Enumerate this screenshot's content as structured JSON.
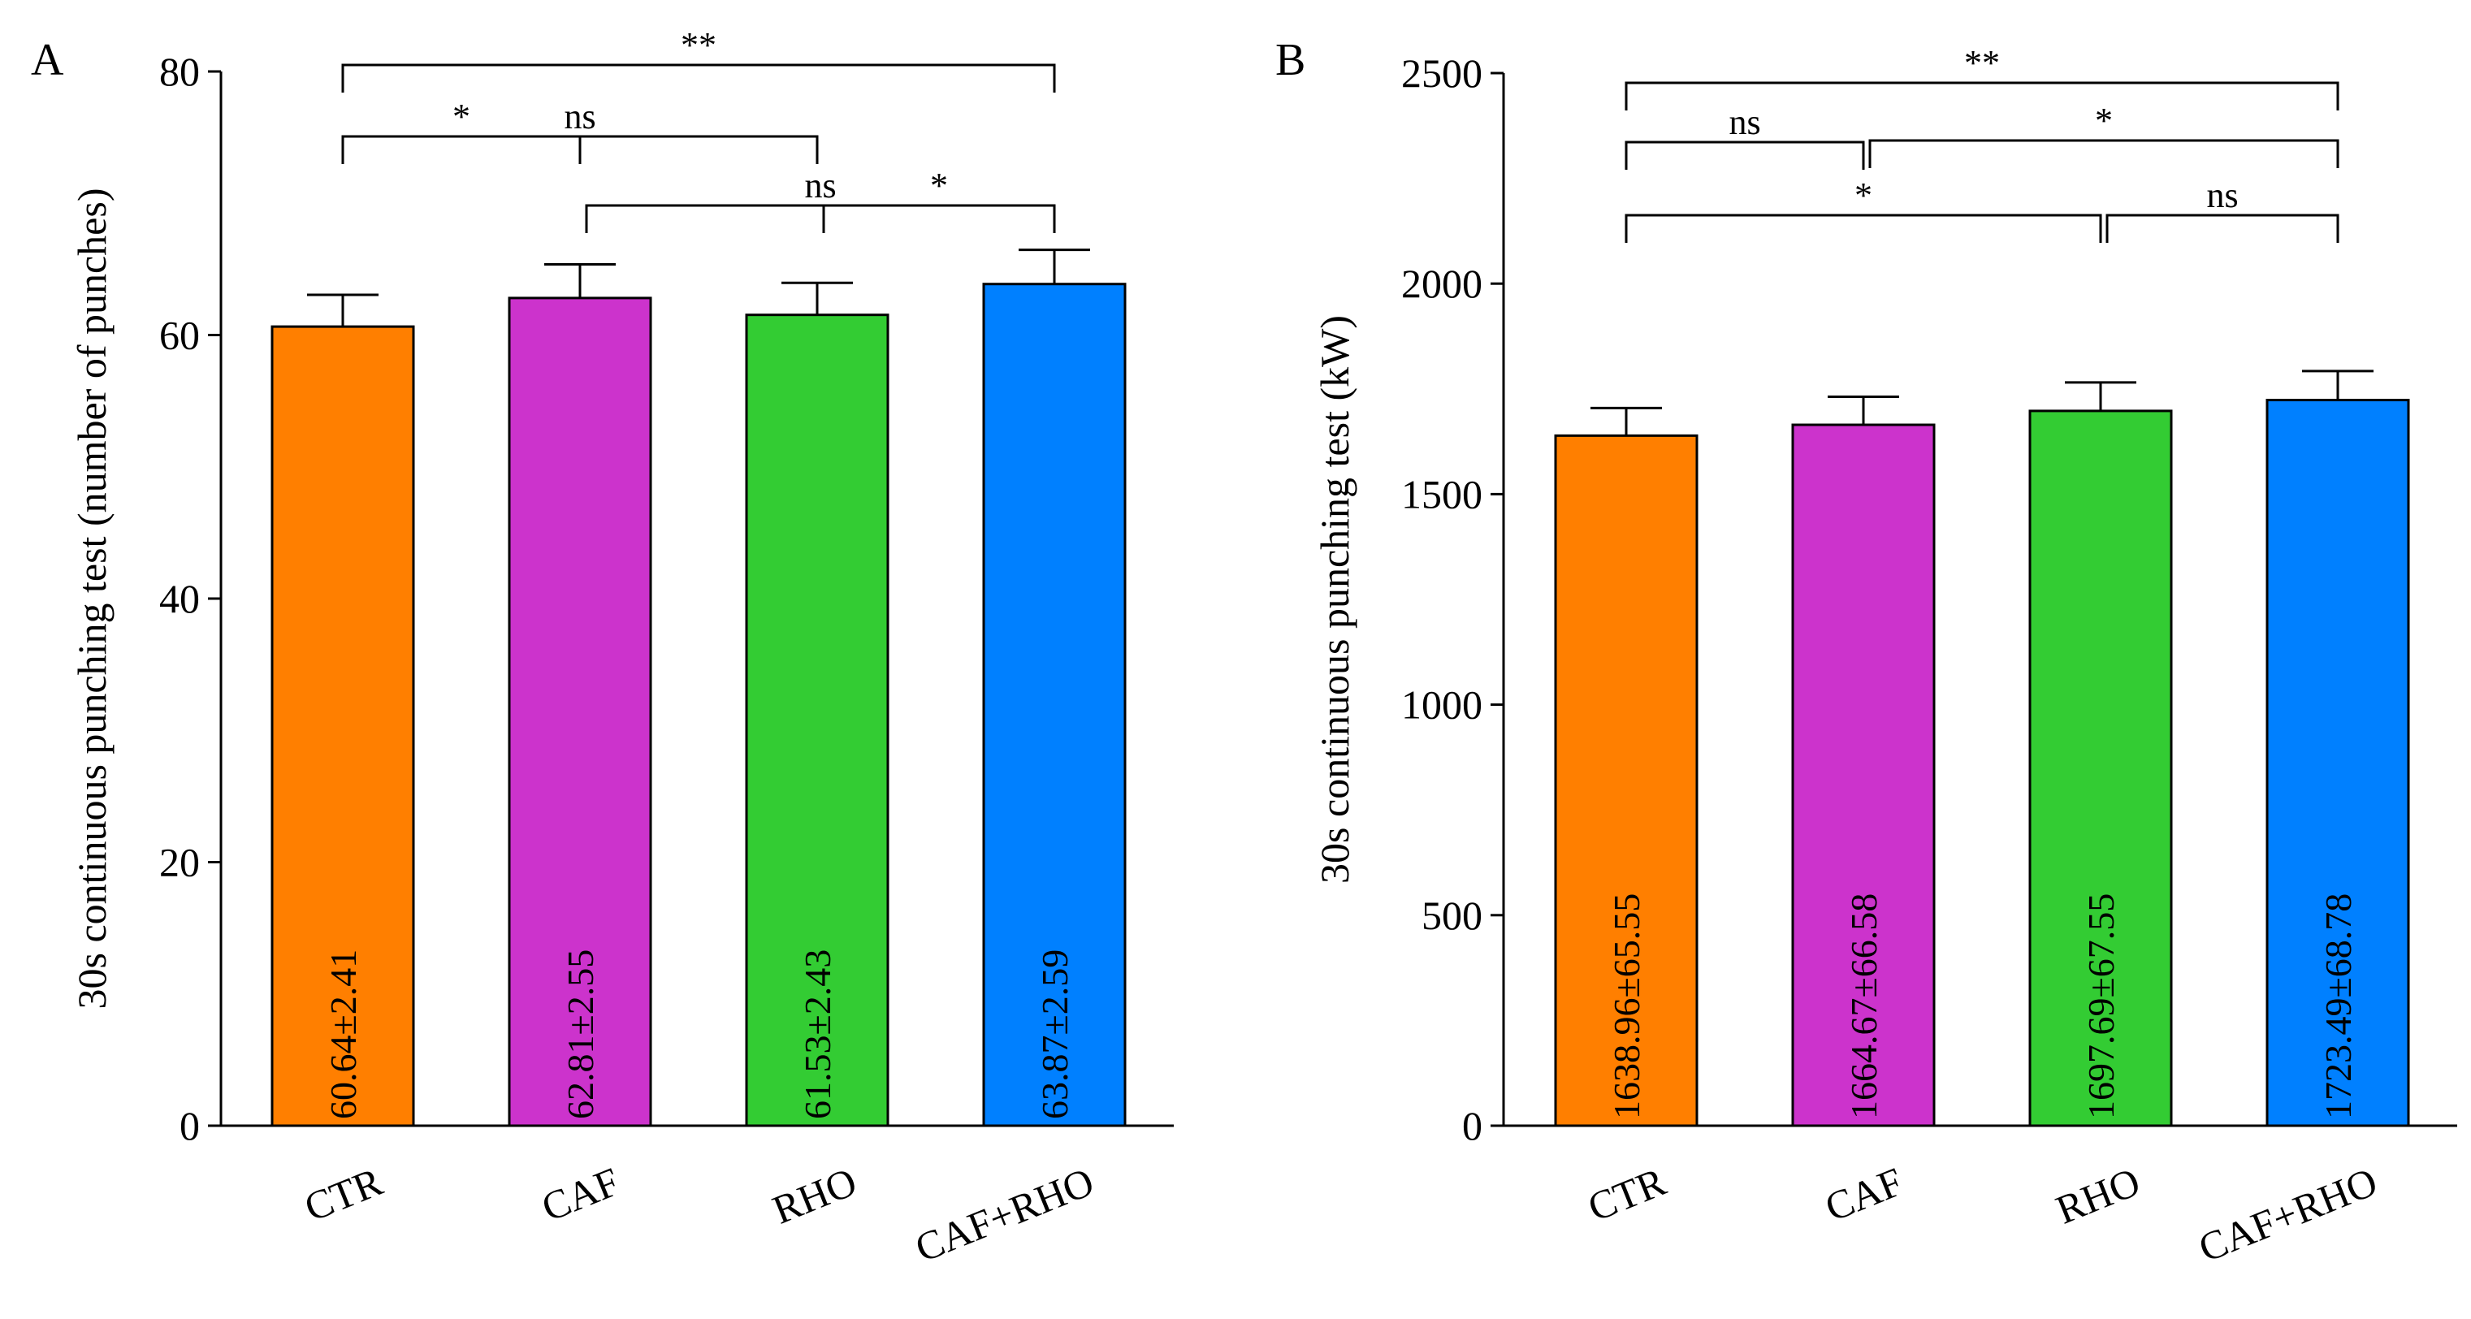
{
  "chart_data": [
    {
      "type": "bar",
      "panel": "A",
      "ylabel": "30s continuous punching test (number of punches)",
      "xlabel": "",
      "ylim": [
        0,
        80
      ],
      "yticks": [
        0,
        20,
        40,
        60,
        80
      ],
      "categories": [
        "CTR",
        "CAF",
        "RHO",
        "CAF+RHO"
      ],
      "values": [
        60.64,
        62.81,
        61.53,
        63.87
      ],
      "errors": [
        2.41,
        2.55,
        2.43,
        2.59
      ],
      "value_labels": [
        "60.64±2.41",
        "62.81±2.55",
        "61.53±2.43",
        "63.87±2.59"
      ],
      "colors": [
        "#ff7f00",
        "#cc33cc",
        "#33cc33",
        "#0080ff"
      ],
      "significance": [
        {
          "from": 0,
          "to": 3,
          "label": "**"
        },
        {
          "from": 0,
          "to": 1,
          "label": "*"
        },
        {
          "from": 1,
          "to": 3,
          "label": "ns"
        },
        {
          "from": 0,
          "to": 2,
          "label": "ns"
        },
        {
          "from": 2,
          "to": 3,
          "label": "*"
        }
      ]
    },
    {
      "type": "bar",
      "panel": "B",
      "ylabel": "30s continuous punching test (kW)",
      "xlabel": "",
      "ylim": [
        0,
        2500
      ],
      "yticks": [
        0,
        500,
        1000,
        1500,
        2000,
        2500
      ],
      "categories": [
        "CTR",
        "CAF",
        "RHO",
        "CAF+RHO"
      ],
      "values": [
        1638.96,
        1664.67,
        1697.69,
        1723.49
      ],
      "errors": [
        65.55,
        66.58,
        67.55,
        68.78
      ],
      "value_labels": [
        "1638.96±65.55",
        "1664.67±66.58",
        "1697.69±67.55",
        "1723.49±68.78"
      ],
      "colors": [
        "#ff7f00",
        "#cc33cc",
        "#33cc33",
        "#0080ff"
      ],
      "significance": [
        {
          "from": 0,
          "to": 3,
          "label": "**"
        },
        {
          "from": 0,
          "to": 1,
          "label": "ns"
        },
        {
          "from": 1,
          "to": 3,
          "label": "*"
        },
        {
          "from": 0,
          "to": 2,
          "label": "*"
        },
        {
          "from": 2,
          "to": 3,
          "label": "ns"
        }
      ]
    }
  ]
}
